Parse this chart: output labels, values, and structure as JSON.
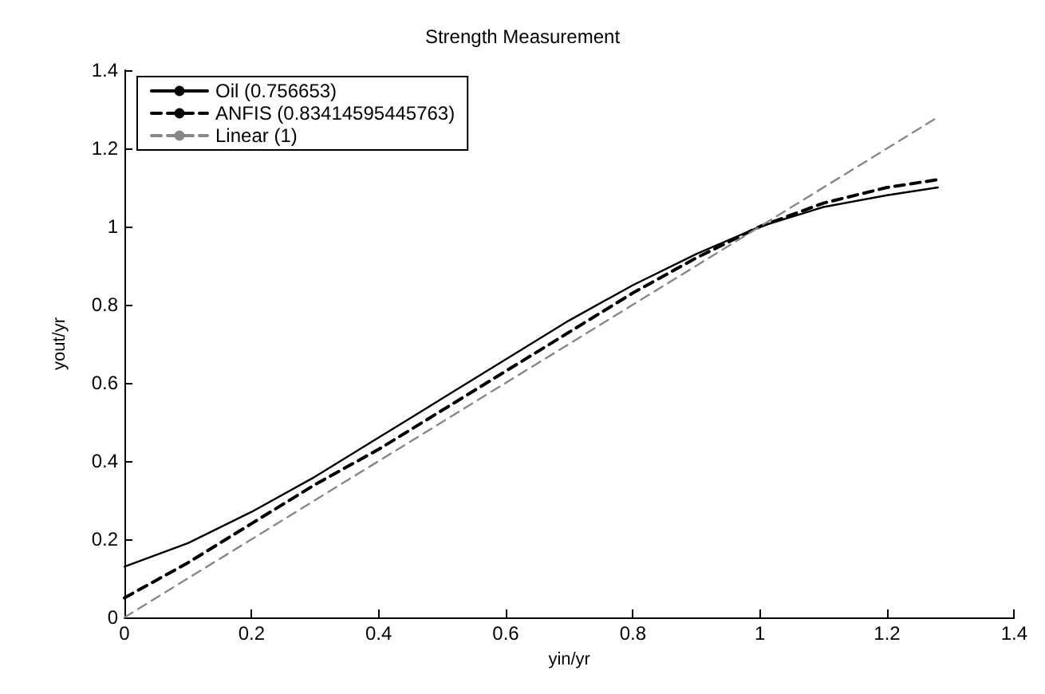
{
  "chart_data": {
    "type": "line",
    "title": "Strength Measurement",
    "xlabel": "yin/yr",
    "ylabel": "yout/yr",
    "xlim": [
      0,
      1.4
    ],
    "ylim": [
      0,
      1.4
    ],
    "xticks": [
      0,
      0.2,
      0.4,
      0.6,
      0.8,
      1,
      1.2,
      1.4
    ],
    "yticks": [
      0,
      0.2,
      0.4,
      0.6,
      0.8,
      1,
      1.2,
      1.4
    ],
    "grid": false,
    "legend": "top left",
    "marker": "none",
    "series": [
      {
        "name": "Oil (0.756653)",
        "color": "#000000",
        "line_style": "solid",
        "x": [
          0,
          0.1,
          0.2,
          0.3,
          0.4,
          0.5,
          0.6,
          0.7,
          0.8,
          0.9,
          1.0,
          1.1,
          1.2,
          1.28
        ],
        "values": [
          0.13,
          0.19,
          0.27,
          0.36,
          0.46,
          0.56,
          0.66,
          0.76,
          0.85,
          0.93,
          1.0,
          1.05,
          1.08,
          1.1
        ]
      },
      {
        "name": "ANFIS (0.83414595445763)",
        "color": "#000000",
        "line_style": "dashed",
        "x": [
          0,
          0.1,
          0.2,
          0.3,
          0.4,
          0.5,
          0.6,
          0.7,
          0.8,
          0.9,
          1.0,
          1.1,
          1.2,
          1.28
        ],
        "values": [
          0.05,
          0.14,
          0.24,
          0.34,
          0.43,
          0.53,
          0.63,
          0.73,
          0.83,
          0.92,
          1.0,
          1.06,
          1.1,
          1.12
        ]
      },
      {
        "name": "Linear (1)",
        "color": "#888888",
        "line_style": "dashed",
        "x": [
          0,
          1.28
        ],
        "values": [
          0,
          1.28
        ]
      }
    ]
  }
}
